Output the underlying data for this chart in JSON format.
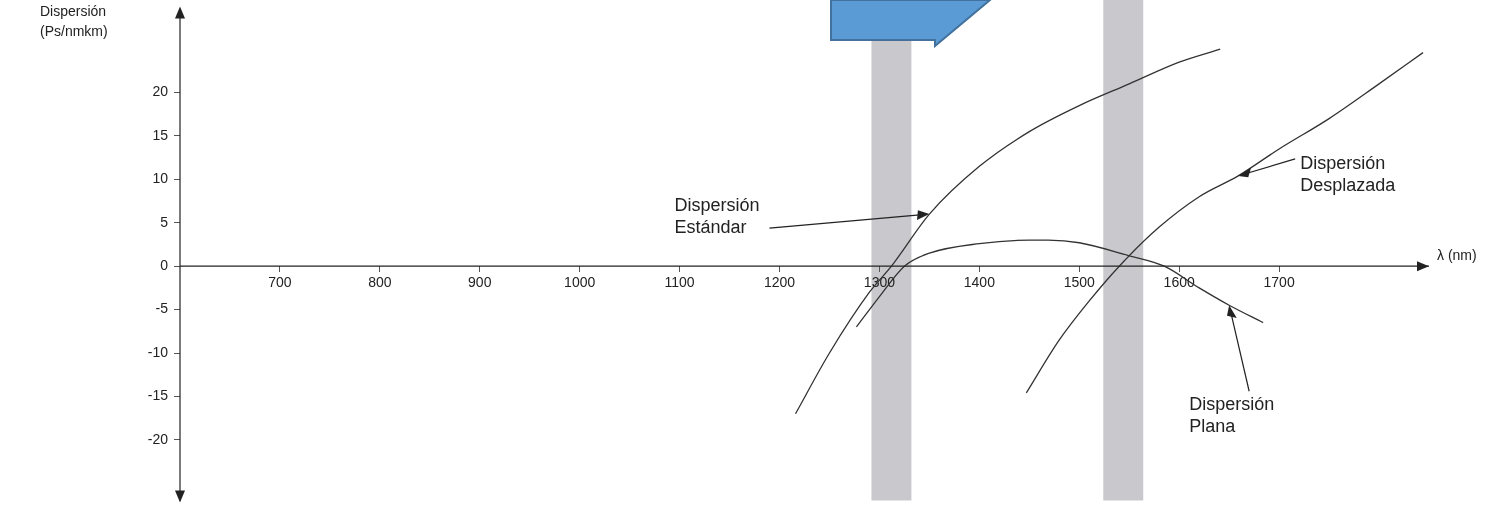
{
  "chart_data": {
    "type": "line",
    "xlabel": "λ (nm)",
    "ylabel": "Dispersión\n(Ps/nmkm)",
    "xlim": [
      600,
      1850
    ],
    "xticks": [
      700,
      800,
      900,
      1000,
      1100,
      1200,
      1300,
      1400,
      1500,
      1600,
      1700
    ],
    "ylim": [
      -27,
      29
    ],
    "yticks": [
      -20,
      -15,
      -10,
      -5,
      0,
      5,
      10,
      15,
      20
    ],
    "grid": false,
    "legend": false,
    "marker": "none",
    "line_style": "solid",
    "series": [
      {
        "color": "#333333",
        "x": [
          1216,
          1250,
          1290,
          1312,
          1350,
          1400,
          1450,
          1500,
          1550,
          1600,
          1641
        ],
        "values": [
          -17,
          -10,
          -3,
          0,
          6,
          11.5,
          15.5,
          18.5,
          21,
          23.5,
          25
        ]
      },
      {
        "color": "#333333",
        "x": [
          1447,
          1480,
          1510,
          1540,
          1580,
          1620,
          1659,
          1700,
          1750,
          1800,
          1844
        ],
        "values": [
          -14.6,
          -8.5,
          -4,
          0,
          4.5,
          8,
          10.4,
          13.5,
          17,
          21,
          24.6
        ]
      },
      {
        "color": "#333333",
        "x": [
          1277,
          1300,
          1325,
          1350,
          1400,
          1450,
          1469,
          1500,
          1550,
          1585,
          1620,
          1650,
          1684
        ],
        "values": [
          -7,
          -3.5,
          0,
          1.5,
          2.6,
          3,
          3,
          2.7,
          1.2,
          0,
          -2.5,
          -4.5,
          -6.5
        ]
      }
    ],
    "bands": [
      {
        "axis": "x",
        "from": 1292,
        "to": 1332,
        "color": "#c9c9cd"
      },
      {
        "axis": "x",
        "from": 1524,
        "to": 1564,
        "color": "#c9c9cd"
      }
    ],
    "annotations": [
      {
        "text": "Dispersión\nEstándar",
        "x": 1350,
        "y": 6
      },
      {
        "text": "Dispersión\nDesplazada",
        "x": 1659,
        "y": 10.4
      },
      {
        "text": "Dispersión\nPlana",
        "x": 1650,
        "y": -4.5
      }
    ]
  }
}
